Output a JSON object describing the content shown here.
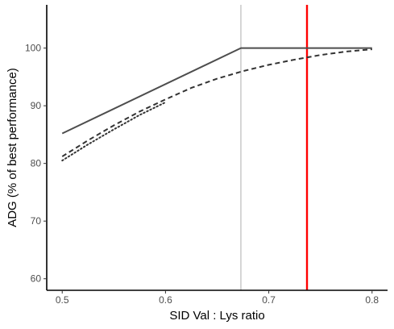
{
  "chart_data": {
    "type": "line",
    "title": "",
    "xlabel": "SID Val : Lys ratio",
    "ylabel": "ADG (% of best performance)",
    "xlim": [
      0.485,
      0.815
    ],
    "ylim": [
      58,
      107.5
    ],
    "x_ticks": [
      0.5,
      0.6,
      0.7,
      0.8
    ],
    "x_tick_labels": [
      "0.5",
      "0.6",
      "0.7",
      "0.8"
    ],
    "y_ticks": [
      60,
      70,
      80,
      90,
      100
    ],
    "y_tick_labels": [
      "60",
      "70",
      "80",
      "90",
      "100"
    ],
    "grid": false,
    "legend": "none",
    "series": [
      {
        "style": "solid",
        "color": "#4d4d4d",
        "x": [
          0.5,
          0.673,
          0.8
        ],
        "y": [
          85.2,
          100,
          100
        ]
      },
      {
        "style": "dashed",
        "color": "#333333",
        "x": [
          0.5,
          0.525,
          0.55,
          0.575,
          0.6,
          0.625,
          0.65,
          0.675,
          0.7,
          0.725,
          0.75,
          0.775,
          0.8
        ],
        "y": [
          81.2,
          84.0,
          86.6,
          89.0,
          91.1,
          93.1,
          94.7,
          96.0,
          97.1,
          98.0,
          98.8,
          99.4,
          99.8
        ]
      },
      {
        "style": "dotted",
        "color": "#333333",
        "x": [
          0.5,
          0.525,
          0.55,
          0.575,
          0.6
        ],
        "y": [
          80.5,
          83.3,
          85.9,
          88.4,
          90.6
        ]
      }
    ],
    "vlines": [
      {
        "x": 0.673,
        "color": "#999999",
        "style": "thin"
      },
      {
        "x": 0.737,
        "color": "#ff0000",
        "style": "thick"
      }
    ]
  }
}
